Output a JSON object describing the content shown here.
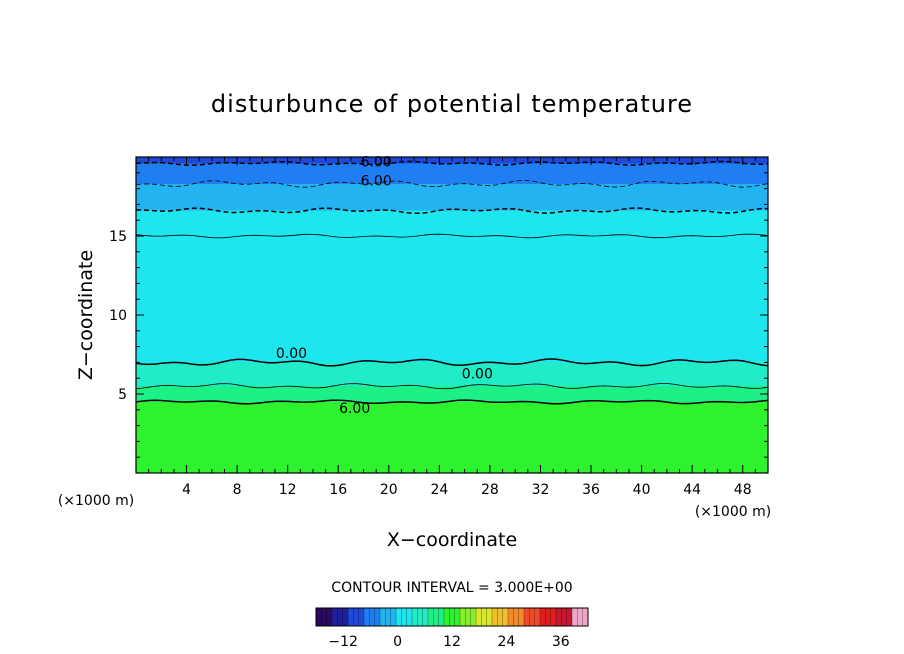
{
  "chart_data": {
    "type": "heatmap",
    "title": "disturbunce of potential temperature",
    "xlabel": "X−coordinate",
    "ylabel": "Z−coordinate",
    "x_unit": "(×1000 m)",
    "y_unit": "(×1000 m)",
    "xlim": [
      0,
      50
    ],
    "ylim": [
      0,
      20
    ],
    "x_ticks": [
      4,
      8,
      12,
      16,
      20,
      24,
      28,
      32,
      36,
      40,
      44,
      48
    ],
    "y_ticks": [
      5,
      10,
      15
    ],
    "grid": false,
    "contour_interval_text": "CONTOUR INTERVAL = 3.000E+00",
    "contour_labels": [
      {
        "text": "6.00",
        "x": 19.0,
        "y": 19.7
      },
      {
        "text": "6.00",
        "x": 19.0,
        "y": 18.5
      },
      {
        "text": "0.00",
        "x": 12.3,
        "y": 7.6
      },
      {
        "text": "0.00",
        "x": 27.0,
        "y": 6.3
      },
      {
        "text": "6.00",
        "x": 17.3,
        "y": 4.1
      }
    ],
    "field_bands": [
      {
        "z_from": 0,
        "z_to": 4.5,
        "value": 12
      },
      {
        "z_from": 4.5,
        "z_to": 5.5,
        "value": 9
      },
      {
        "z_from": 5.5,
        "z_to": 7.0,
        "value": 6
      },
      {
        "z_from": 7.0,
        "z_to": 15.0,
        "value": 3
      },
      {
        "z_from": 15.0,
        "z_to": 16.6,
        "value": 0
      },
      {
        "z_from": 16.6,
        "z_to": 18.3,
        "value": -3
      },
      {
        "z_from": 18.3,
        "z_to": 19.6,
        "value": -6
      },
      {
        "z_from": 19.6,
        "z_to": 20.0,
        "value": -9
      }
    ],
    "colorbar": {
      "min": -18,
      "max": 42,
      "ticks": [
        "−12",
        "0",
        "12",
        "24",
        "36"
      ],
      "tick_values": [
        -12,
        0,
        12,
        24,
        36
      ],
      "colors": [
        "#2a0a5e",
        "#1f1f9e",
        "#1d49d6",
        "#1f7ef2",
        "#22b3f0",
        "#1ee6ee",
        "#22ecc8",
        "#1ef088",
        "#2ef22e",
        "#88f02a",
        "#d8e82a",
        "#f0c02a",
        "#f08a2a",
        "#ee4a26",
        "#e01e1e",
        "#c81830",
        "#f0a6c8"
      ]
    }
  }
}
